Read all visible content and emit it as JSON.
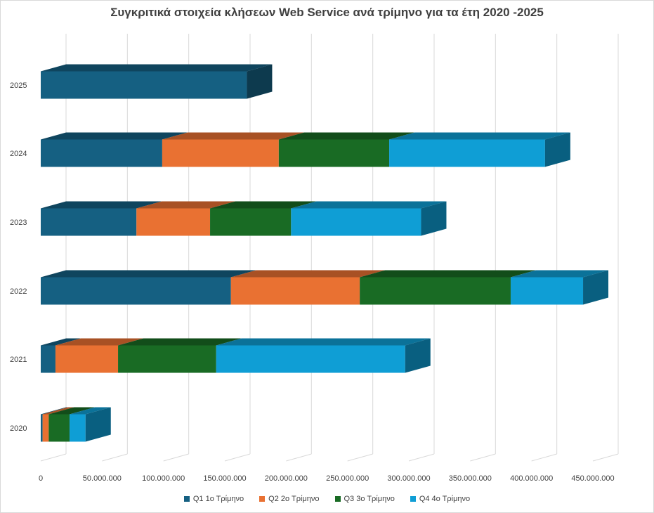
{
  "chart_data": {
    "type": "bar",
    "orientation": "horizontal",
    "stacked": true,
    "style": "3d",
    "title": "Συγκριτικά στοιχεία κλήσεων Web Service ανά τρίμηνο για τα έτη 2020 -2025",
    "xlabel": "",
    "ylabel": "",
    "categories": [
      "2020",
      "2021",
      "2022",
      "2023",
      "2024",
      "2025"
    ],
    "series": [
      {
        "name": "Q1  1ο Τρίμηνο",
        "color": "#156082",
        "values": [
          1500000,
          12000000,
          155000000,
          78000000,
          99000000,
          168000000
        ]
      },
      {
        "name": "Q2 2ο Τρίμηνο",
        "color": "#E97132",
        "values": [
          5000000,
          51000000,
          105000000,
          60000000,
          95000000,
          0
        ]
      },
      {
        "name": "Q3  3ο Τρίμηνο",
        "color": "#196B24",
        "values": [
          17000000,
          80000000,
          123000000,
          66000000,
          90000000,
          0
        ]
      },
      {
        "name": "Q4  4ο Τρίμηνο",
        "color": "#0F9ED5",
        "values": [
          13000000,
          154000000,
          59000000,
          106000000,
          127000000,
          0
        ]
      }
    ],
    "xlim": [
      0,
      450000000
    ],
    "x_ticks": [
      "0",
      "50.000.000",
      "100.000.000",
      "150.000.000",
      "200.000.000",
      "250.000.000",
      "300.000.000",
      "350.000.000",
      "400.000.000",
      "450.000.000"
    ],
    "grid": true,
    "legend_position": "bottom"
  }
}
